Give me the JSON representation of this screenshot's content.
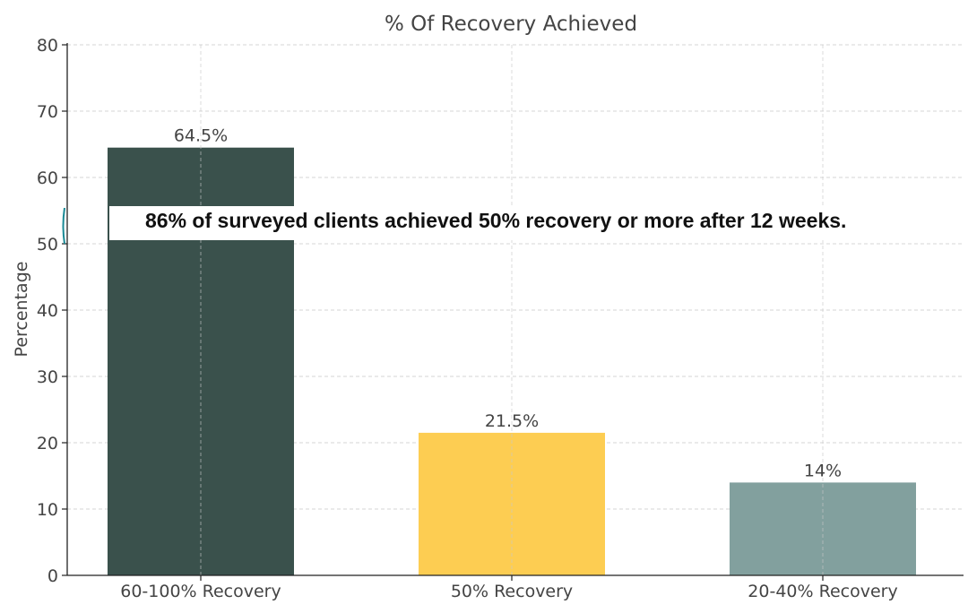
{
  "chart_data": {
    "type": "bar",
    "title": "% Of Recovery Achieved",
    "xlabel": "",
    "ylabel": "Percentage",
    "categories": [
      "60-100% Recovery",
      "50% Recovery",
      "20-40% Recovery"
    ],
    "values": [
      64.5,
      21.5,
      14
    ],
    "value_labels": [
      "64.5%",
      "21.5%",
      "14%"
    ],
    "bar_colors": [
      "#3a514c",
      "#fdcd52",
      "#82a09e"
    ],
    "ylim": [
      0,
      80
    ],
    "yticks": [
      0,
      10,
      20,
      30,
      40,
      50,
      60,
      70,
      80
    ],
    "grid": true,
    "annotation": "86% of surveyed clients achieved 50% recovery or more after 12 weeks."
  },
  "colors": {
    "text": "#444444",
    "axis": "#222222",
    "grid": "#c8c8c8",
    "accent": "#1a8a96"
  }
}
